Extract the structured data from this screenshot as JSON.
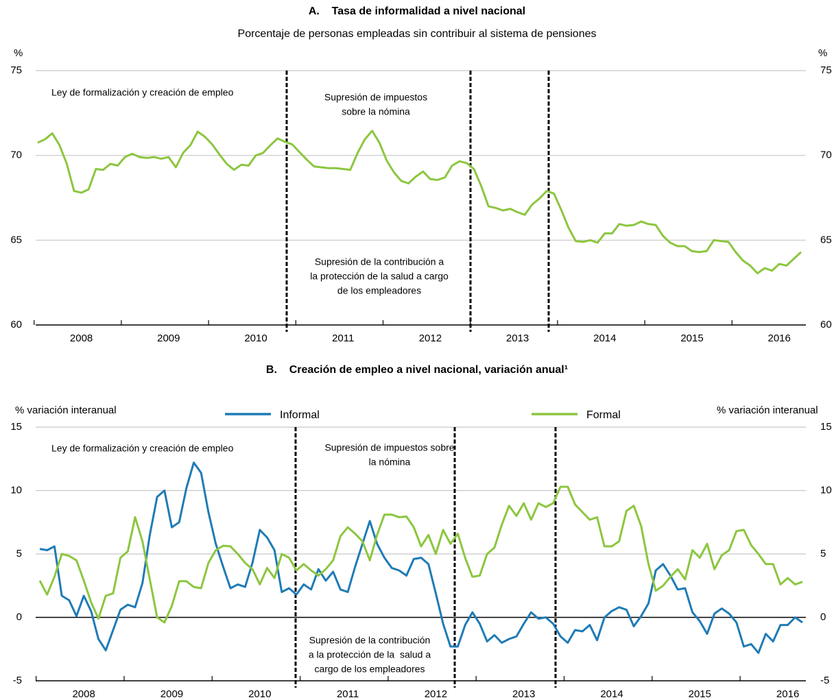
{
  "chart_data": [
    {
      "type": "line",
      "title": "A.    Tasa de informalidad a nivel nacional",
      "subtitle": "Porcentaje de personas empleadas sin contribuir al sistema de pensiones",
      "ylabel": "%",
      "ylim": [
        60,
        75
      ],
      "yticks": [
        60,
        65,
        70,
        75
      ],
      "grid": true,
      "categories": [
        null,
        null,
        null,
        null,
        null,
        null,
        "2008",
        null,
        null,
        null,
        null,
        null,
        null,
        null,
        null,
        null,
        null,
        null,
        "2009",
        null,
        null,
        null,
        null,
        null,
        null,
        null,
        null,
        null,
        null,
        null,
        "2010",
        null,
        null,
        null,
        null,
        null,
        null,
        null,
        null,
        null,
        null,
        null,
        "2011",
        null,
        null,
        null,
        null,
        null,
        null,
        null,
        null,
        null,
        null,
        null,
        "2012",
        null,
        null,
        null,
        null,
        null,
        null,
        null,
        null,
        null,
        null,
        null,
        "2013",
        null,
        null,
        null,
        null,
        null,
        null,
        null,
        null,
        null,
        null,
        null,
        "2014",
        null,
        null,
        null,
        null,
        null,
        null,
        null,
        null,
        null,
        null,
        null,
        "2015",
        null,
        null,
        null,
        null,
        null,
        null,
        null,
        null,
        null,
        null,
        null,
        "2016",
        null,
        null,
        null
      ],
      "series": [
        {
          "name": null,
          "color": "#8cc63f",
          "values": [
            70.75,
            70.95,
            71.3,
            70.6,
            69.5,
            67.9,
            67.8,
            68.0,
            69.2,
            69.15,
            69.5,
            69.4,
            69.9,
            70.1,
            69.9,
            69.85,
            69.9,
            69.8,
            69.9,
            69.3,
            70.15,
            70.6,
            71.4,
            71.1,
            70.65,
            70.05,
            69.5,
            69.15,
            69.45,
            69.4,
            70.0,
            70.15,
            70.6,
            71.0,
            70.8,
            70.65,
            70.2,
            69.75,
            69.35,
            69.3,
            69.25,
            69.25,
            69.2,
            69.15,
            70.15,
            70.95,
            71.45,
            70.75,
            69.7,
            69.0,
            68.5,
            68.35,
            68.75,
            69.05,
            68.6,
            68.55,
            68.7,
            69.4,
            69.65,
            69.55,
            69.2,
            68.2,
            67.0,
            66.9,
            66.75,
            66.85,
            66.65,
            66.5,
            67.1,
            67.45,
            67.9,
            67.75,
            66.8,
            65.75,
            64.95,
            64.9,
            65.0,
            64.85,
            65.4,
            65.4,
            65.95,
            65.85,
            65.9,
            66.1,
            65.95,
            65.9,
            65.25,
            64.85,
            64.65,
            64.65,
            64.35,
            64.3,
            64.35,
            65.0,
            64.95,
            64.9,
            64.3,
            63.8,
            63.5,
            63.05,
            63.35,
            63.2,
            63.6,
            63.5,
            63.9,
            64.3
          ]
        }
      ],
      "annotations": [
        [
          "Ley de formalización y creación de empleo"
        ],
        [
          "Supresión de impuestos",
          "sobre la nómina"
        ],
        [
          "Supresión de la contribución a",
          "la protección de la salud a cargo",
          "de los empleadores"
        ]
      ]
    },
    {
      "type": "line",
      "title": "B.    Creación de empleo a nivel nacional, variación anual¹",
      "ylabel": "% variación interanual",
      "ylim": [
        -5,
        15
      ],
      "yticks": [
        -5,
        0,
        5,
        10,
        15
      ],
      "grid": true,
      "categories": [
        null,
        null,
        null,
        null,
        null,
        null,
        "2008",
        null,
        null,
        null,
        null,
        null,
        null,
        null,
        null,
        null,
        null,
        null,
        "2009",
        null,
        null,
        null,
        null,
        null,
        null,
        null,
        null,
        null,
        null,
        null,
        "2010",
        null,
        null,
        null,
        null,
        null,
        null,
        null,
        null,
        null,
        null,
        null,
        "2011",
        null,
        null,
        null,
        null,
        null,
        null,
        null,
        null,
        null,
        null,
        null,
        "2012",
        null,
        null,
        null,
        null,
        null,
        null,
        null,
        null,
        null,
        null,
        null,
        "2013",
        null,
        null,
        null,
        null,
        null,
        null,
        null,
        null,
        null,
        null,
        null,
        "2014",
        null,
        null,
        null,
        null,
        null,
        null,
        null,
        null,
        null,
        null,
        null,
        "2015",
        null,
        null,
        null,
        null,
        null,
        null,
        null,
        null,
        null,
        null,
        null,
        "2016",
        null,
        null
      ],
      "series": [
        {
          "name": "Informal",
          "color": "#1f7bb6",
          "values": [
            5.4,
            5.3,
            5.6,
            1.7,
            1.35,
            0.1,
            1.7,
            0.5,
            -1.7,
            -2.6,
            -1.0,
            0.6,
            1.0,
            0.8,
            2.7,
            6.5,
            9.5,
            10.0,
            7.1,
            7.5,
            10.2,
            12.2,
            11.4,
            8.3,
            5.8,
            4.0,
            2.3,
            2.6,
            2.4,
            4.3,
            6.9,
            6.3,
            5.3,
            2.0,
            2.3,
            1.8,
            2.6,
            2.2,
            3.8,
            2.9,
            3.6,
            2.2,
            2.0,
            4.0,
            5.8,
            7.6,
            5.8,
            4.7,
            3.9,
            3.7,
            3.3,
            4.6,
            4.7,
            4.2,
            1.9,
            -0.5,
            -2.3,
            -2.3,
            -0.6,
            0.4,
            -0.5,
            -1.9,
            -1.4,
            -2.0,
            -1.7,
            -1.5,
            -0.5,
            0.4,
            -0.1,
            0.0,
            -0.5,
            -1.5,
            -2.0,
            -1.0,
            -1.1,
            -0.6,
            -1.8,
            0.0,
            0.5,
            0.8,
            0.6,
            -0.7,
            0.1,
            1.1,
            3.7,
            4.2,
            3.3,
            2.2,
            2.3,
            0.4,
            -0.3,
            -1.3,
            0.3,
            0.7,
            0.3,
            -0.4,
            -2.3,
            -2.1,
            -2.8,
            -1.3,
            -1.9,
            -0.6,
            -0.6,
            0.0,
            -0.4
          ]
        },
        {
          "name": "Formal",
          "color": "#8cc63f",
          "values": [
            2.9,
            1.8,
            3.2,
            5.0,
            4.85,
            4.5,
            2.9,
            1.2,
            -0.1,
            1.7,
            1.9,
            4.7,
            5.2,
            7.9,
            6.0,
            3.0,
            0.0,
            -0.4,
            0.9,
            2.85,
            2.85,
            2.4,
            2.3,
            4.3,
            5.3,
            5.65,
            5.6,
            5.0,
            4.3,
            3.8,
            2.6,
            3.9,
            3.1,
            5.0,
            4.7,
            3.7,
            4.2,
            3.7,
            3.3,
            3.8,
            4.5,
            6.4,
            7.1,
            6.6,
            6.0,
            4.5,
            6.5,
            8.1,
            8.1,
            7.9,
            7.95,
            7.1,
            5.6,
            6.5,
            5.0,
            6.9,
            5.8,
            6.6,
            4.7,
            3.2,
            3.3,
            5.0,
            5.5,
            7.3,
            8.8,
            8.0,
            9.0,
            7.7,
            9.0,
            8.7,
            9.0,
            10.3,
            10.3,
            8.9,
            8.3,
            7.7,
            7.9,
            5.6,
            5.6,
            6.0,
            8.4,
            8.8,
            7.2,
            4.2,
            2.1,
            2.5,
            3.2,
            3.8,
            3.0,
            5.3,
            4.7,
            5.8,
            3.8,
            4.9,
            5.3,
            6.8,
            6.9,
            5.7,
            5.0,
            4.2,
            4.2,
            2.6,
            3.1,
            2.6,
            2.8
          ]
        }
      ],
      "annotations": [
        [
          "Ley de formalización y creación de empleo"
        ],
        [
          "Supresión de impuestos sobre",
          "la nómina"
        ],
        [
          "Supresión de la contribución",
          "a la protección de la  salud a",
          "cargo de los empleadores"
        ]
      ]
    }
  ]
}
